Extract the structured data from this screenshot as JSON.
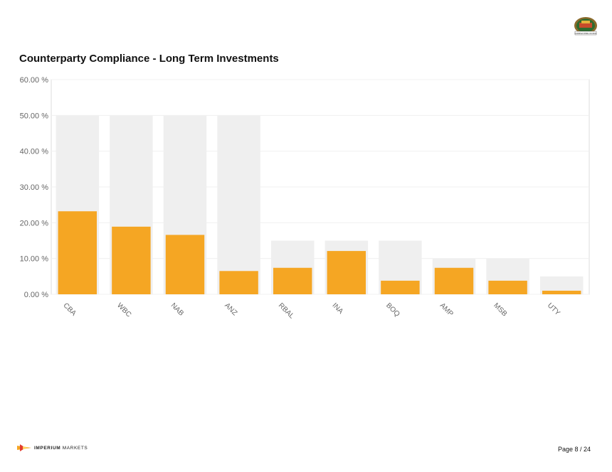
{
  "header": {
    "logo_icon": "council-seal-icon",
    "logo_caption": "CARDINIA SHIRE COUNCIL"
  },
  "page_title": "Counterparty Compliance - Long Term Investments",
  "chart_data": {
    "type": "bar",
    "title": "Counterparty Compliance - Long Term Investments",
    "categories": [
      "CBA",
      "WBC",
      "NAB",
      "ANZ",
      "RBAL",
      "INA",
      "BOQ",
      "AMP",
      "MSB",
      "UTY"
    ],
    "series": [
      {
        "values": [
          50,
          50,
          50,
          50,
          15,
          15,
          15,
          10,
          10,
          5
        ],
        "color": "#efefef"
      },
      {
        "values": [
          23.2,
          18.9,
          16.6,
          6.5,
          7.4,
          12.1,
          3.8,
          7.4,
          3.8,
          1.0
        ],
        "color": "#f5a623"
      }
    ],
    "y_ticks": [
      "0.00 %",
      "10.00 %",
      "20.00 %",
      "30.00 %",
      "40.00 %",
      "50.00 %",
      "60.00 %"
    ],
    "ylim": [
      0,
      60
    ],
    "xlabel": "",
    "ylabel": "",
    "grid": true,
    "legend": "none"
  },
  "footer": {
    "brand_bold": "IMPERIUM",
    "brand_light": "MARKETS",
    "brand_icon": "imperium-markets-logo-icon",
    "page_number": "Page 8 / 24",
    "accent": "#f5a623"
  }
}
